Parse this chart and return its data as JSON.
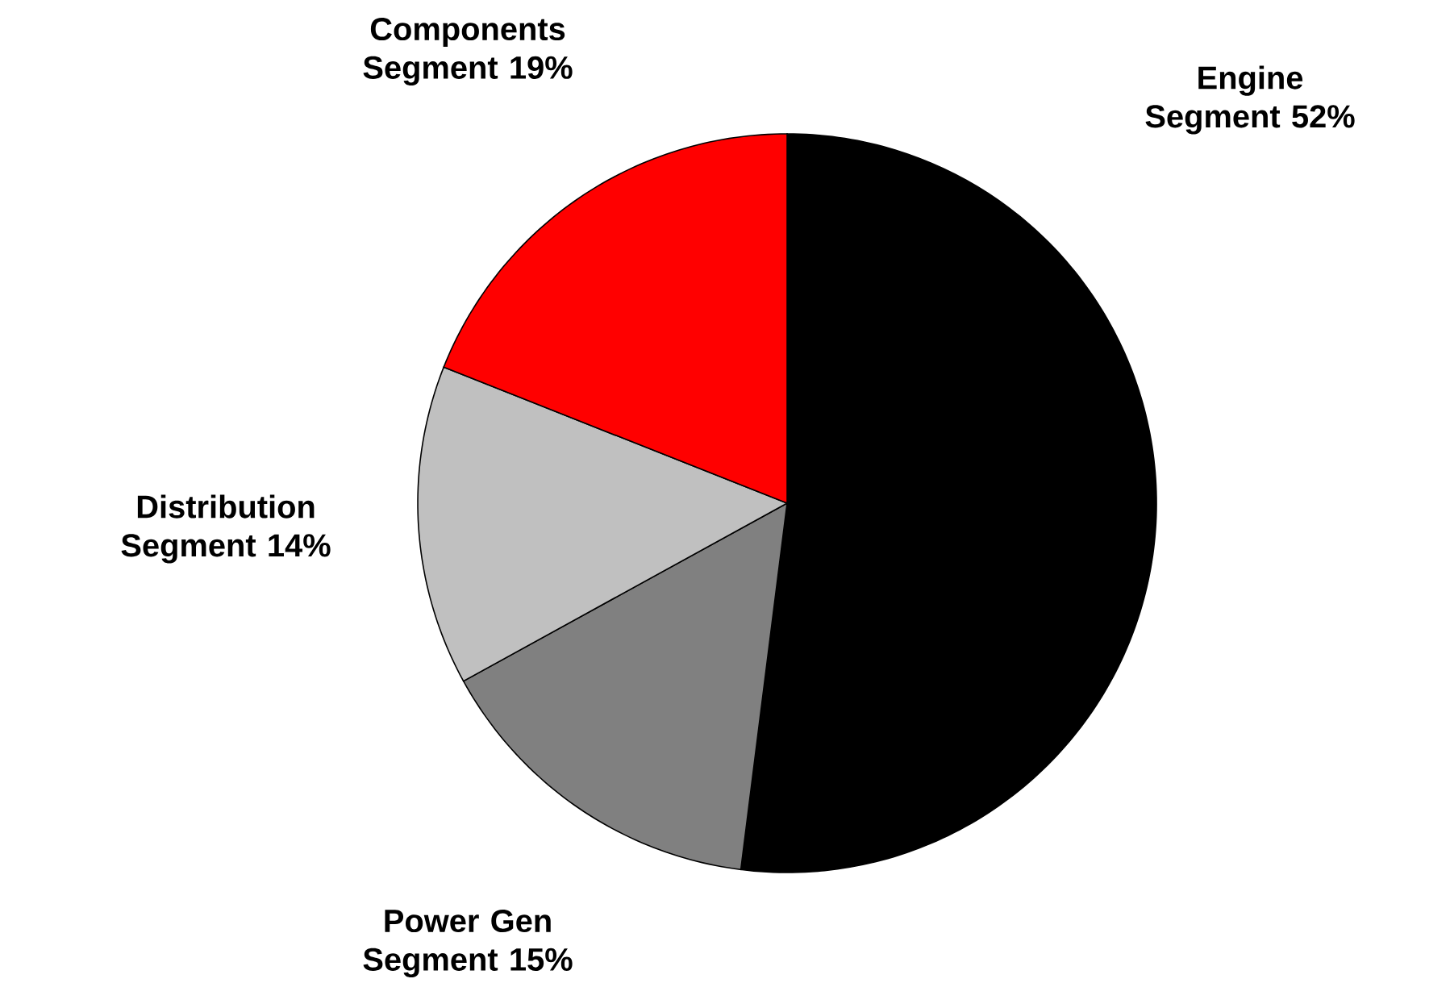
{
  "chart_data": {
    "type": "pie",
    "categories": [
      "Engine Segment",
      "Power Gen Segment",
      "Distribution Segment",
      "Components Segment"
    ],
    "values": [
      52,
      15,
      14,
      19
    ],
    "value_labels": [
      "52%",
      "15%",
      "14%",
      "19%"
    ],
    "colors": [
      "#000000",
      "#808080",
      "#c0c0c0",
      "#ff0000"
    ]
  }
}
